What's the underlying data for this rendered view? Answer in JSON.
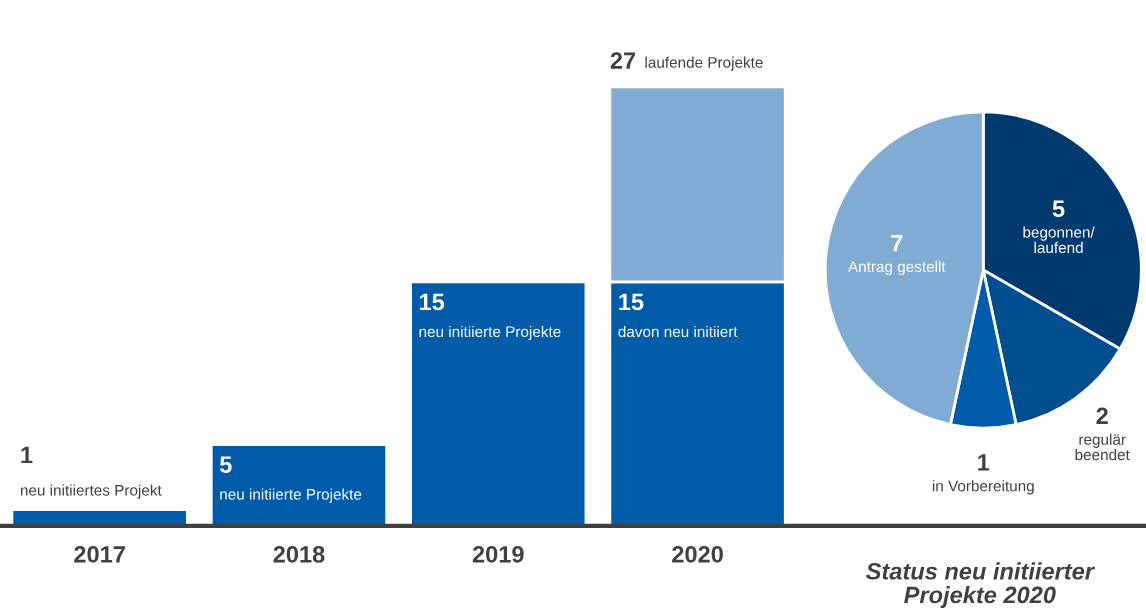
{
  "chart_data": [
    {
      "type": "bar",
      "stacked": true,
      "categories": [
        "2017",
        "2018",
        "2019",
        "2020"
      ],
      "series": [
        {
          "color": "#005ca8",
          "values": [
            1,
            5,
            15,
            15
          ],
          "value_labels": [
            "1\nneu initiiertes Projekt",
            "5\nneu initiierte Projekte",
            "15\nneu initiierte Projekte",
            "15\ndavon neu initiiert"
          ]
        },
        {
          "color": "#80acd4",
          "values": [
            null,
            null,
            null,
            12
          ]
        }
      ],
      "totals": [
        null,
        null,
        null,
        "27 laufende Projekte"
      ]
    },
    {
      "type": "pie",
      "title": "Status neu initiierter\nProjekte 2020",
      "categories": [
        "begonnen/\nlaufend",
        "regulär\nbeendet",
        "in Vorbereitung",
        "Antrag gestellt"
      ],
      "values": [
        5,
        2,
        1,
        7
      ],
      "colors": [
        "#003a6e",
        "#004e8f",
        "#005ca8",
        "#80acd4"
      ],
      "data_labels": true
    }
  ]
}
